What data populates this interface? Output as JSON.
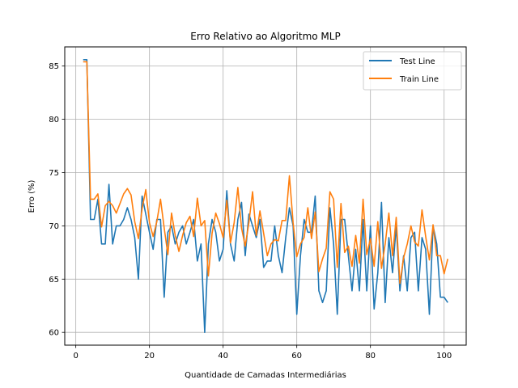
{
  "chart_data": {
    "type": "line",
    "title": "Erro Relativo ao Algoritmo MLP",
    "xlabel": "Quantidade de Camadas Intermediárias",
    "ylabel": "Erro (%)",
    "xlim": [
      -3,
      106
    ],
    "ylim": [
      58.8,
      86.8
    ],
    "xticks": [
      0,
      20,
      40,
      60,
      80,
      100
    ],
    "yticks": [
      60,
      65,
      70,
      75,
      80,
      85
    ],
    "xtick_labels": [
      "0",
      "20",
      "40",
      "60",
      "80",
      "100"
    ],
    "ytick_labels": [
      "60",
      "65",
      "70",
      "75",
      "80",
      "85"
    ],
    "grid": true,
    "legend_position": "top-right",
    "x": [
      2,
      3,
      4,
      5,
      6,
      7,
      8,
      9,
      10,
      11,
      12,
      13,
      14,
      15,
      16,
      17,
      18,
      19,
      20,
      21,
      22,
      23,
      24,
      25,
      26,
      27,
      28,
      29,
      30,
      31,
      32,
      33,
      34,
      35,
      36,
      37,
      38,
      39,
      40,
      41,
      42,
      43,
      44,
      45,
      46,
      47,
      48,
      49,
      50,
      51,
      52,
      53,
      54,
      55,
      56,
      57,
      58,
      59,
      60,
      61,
      62,
      63,
      64,
      65,
      66,
      67,
      68,
      69,
      70,
      71,
      72,
      73,
      74,
      75,
      76,
      77,
      78,
      79,
      80,
      81,
      82,
      83,
      84,
      85,
      86,
      87,
      88,
      89,
      90,
      91,
      92,
      93,
      94,
      95,
      96,
      97,
      98,
      99,
      100,
      101
    ],
    "series": [
      {
        "name": "Test Line",
        "color": "#1f77b4",
        "values": [
          85.6,
          85.6,
          70.6,
          70.6,
          72.5,
          68.3,
          68.3,
          73.9,
          68.3,
          70.0,
          70.0,
          70.6,
          71.7,
          70.6,
          68.9,
          65.0,
          72.8,
          71.1,
          69.4,
          67.8,
          70.6,
          70.6,
          63.3,
          69.4,
          70.0,
          68.3,
          69.4,
          70.0,
          68.3,
          69.4,
          70.6,
          66.7,
          68.3,
          60.0,
          68.3,
          70.6,
          69.4,
          66.7,
          67.8,
          73.3,
          68.3,
          66.7,
          70.6,
          72.2,
          67.2,
          71.1,
          70.0,
          68.9,
          70.6,
          66.1,
          66.7,
          66.7,
          70.0,
          67.2,
          65.6,
          68.9,
          71.7,
          70.0,
          61.7,
          67.2,
          70.6,
          69.4,
          69.4,
          72.8,
          63.9,
          62.8,
          63.9,
          71.7,
          68.3,
          61.7,
          70.6,
          70.6,
          67.2,
          63.9,
          67.8,
          63.9,
          70.6,
          63.9,
          70.0,
          62.2,
          65.6,
          72.2,
          62.8,
          68.9,
          65.6,
          70.0,
          63.9,
          67.2,
          63.9,
          68.9,
          69.4,
          63.9,
          68.9,
          67.8,
          61.7,
          70.0,
          68.3,
          63.3,
          63.3,
          62.8
        ]
      },
      {
        "name": "Train Line",
        "color": "#ff7f0e",
        "values": [
          85.4,
          85.4,
          72.5,
          72.5,
          73.0,
          69.9,
          71.9,
          72.3,
          71.9,
          71.2,
          72.1,
          73.0,
          73.5,
          72.9,
          70.4,
          68.8,
          71.6,
          73.4,
          70.3,
          69.0,
          70.4,
          72.5,
          69.8,
          67.3,
          71.2,
          69.1,
          67.6,
          69.1,
          70.3,
          70.9,
          69.0,
          72.6,
          70.0,
          70.5,
          65.3,
          69.3,
          71.2,
          70.2,
          68.9,
          72.4,
          68.4,
          70.3,
          73.6,
          69.8,
          68.1,
          70.3,
          73.2,
          69.1,
          71.4,
          69.3,
          67.2,
          68.3,
          68.7,
          68.6,
          70.5,
          70.5,
          74.7,
          70.3,
          67.1,
          68.3,
          68.9,
          71.7,
          68.8,
          71.3,
          65.7,
          66.9,
          67.9,
          73.2,
          72.5,
          66.1,
          72.1,
          67.5,
          68.1,
          66.2,
          69.1,
          66.5,
          72.5,
          67.3,
          68.8,
          66.2,
          70.4,
          66.0,
          68.3,
          71.2,
          67.2,
          70.8,
          64.6,
          67.0,
          68.3,
          70.0,
          68.5,
          68.1,
          71.5,
          69.0,
          66.8,
          70.1,
          67.2,
          67.2,
          65.5,
          66.9
        ]
      }
    ]
  }
}
